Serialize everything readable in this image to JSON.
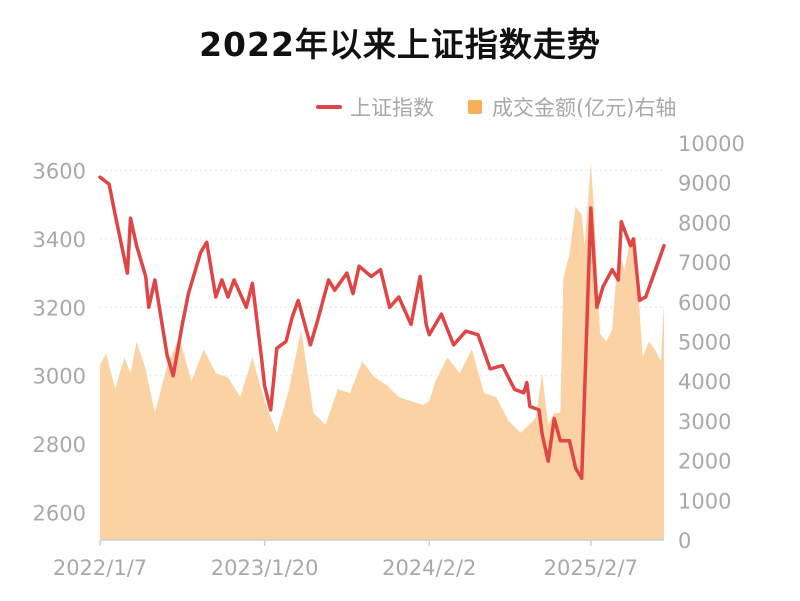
{
  "chart_data": {
    "type": "line+area",
    "title": "2022年以来上证指数走势",
    "colors": {
      "line": "#e04545",
      "area": "#fbd2a3",
      "legend_area": "#f7ae57"
    },
    "legend": [
      {
        "name": "上证指数",
        "kind": "line"
      },
      {
        "name": "成交金额(亿元)右轴",
        "kind": "area"
      }
    ],
    "legend_position": "top-right",
    "grid": true,
    "x_ticks": [
      "2022/1/7",
      "2023/1/20",
      "2024/2/2",
      "2025/2/7"
    ],
    "x_range": [
      "2022/1/7",
      "2025/7/25"
    ],
    "y_left": {
      "ylim": [
        2520,
        3680
      ],
      "ticks": [
        2600,
        2800,
        3000,
        3200,
        3400,
        3600
      ]
    },
    "y_right": {
      "ylim": [
        0,
        10000
      ],
      "ticks": [
        0,
        1000,
        2000,
        3000,
        4000,
        5000,
        6000,
        7000,
        8000,
        9000,
        10000
      ]
    },
    "series": [
      {
        "name": "上证指数",
        "axis": "left",
        "points": [
          [
            "2022/1/7",
            3580
          ],
          [
            "2022/1/28",
            3560
          ],
          [
            "2022/2/11",
            3470
          ],
          [
            "2022/3/11",
            3300
          ],
          [
            "2022/3/18",
            3460
          ],
          [
            "2022/4/1",
            3380
          ],
          [
            "2022/4/22",
            3290
          ],
          [
            "2022/4/29",
            3200
          ],
          [
            "2022/5/13",
            3280
          ],
          [
            "2022/6/10",
            3060
          ],
          [
            "2022/6/24",
            3000
          ],
          [
            "2022/7/15",
            3150
          ],
          [
            "2022/7/29",
            3240
          ],
          [
            "2022/8/26",
            3360
          ],
          [
            "2022/9/9",
            3390
          ],
          [
            "2022/9/30",
            3230
          ],
          [
            "2022/10/14",
            3280
          ],
          [
            "2022/10/28",
            3230
          ],
          [
            "2022/11/11",
            3280
          ],
          [
            "2022/12/9",
            3200
          ],
          [
            "2022/12/23",
            3270
          ],
          [
            "2023/1/13",
            3050
          ],
          [
            "2023/1/20",
            2970
          ],
          [
            "2023/2/3",
            2900
          ],
          [
            "2023/2/17",
            3080
          ],
          [
            "2023/3/10",
            3100
          ],
          [
            "2023/3/24",
            3170
          ],
          [
            "2023/4/7",
            3220
          ],
          [
            "2023/5/5",
            3090
          ],
          [
            "2023/5/19",
            3150
          ],
          [
            "2023/6/16",
            3280
          ],
          [
            "2023/6/30",
            3250
          ],
          [
            "2023/7/28",
            3300
          ],
          [
            "2023/8/11",
            3240
          ],
          [
            "2023/8/25",
            3320
          ],
          [
            "2023/9/22",
            3290
          ],
          [
            "2023/10/13",
            3310
          ],
          [
            "2023/11/3",
            3200
          ],
          [
            "2023/11/24",
            3230
          ],
          [
            "2023/12/22",
            3150
          ],
          [
            "2024/1/12",
            3290
          ],
          [
            "2024/1/26",
            3150
          ],
          [
            "2024/2/2",
            3120
          ],
          [
            "2024/3/1",
            3180
          ],
          [
            "2024/3/29",
            3090
          ],
          [
            "2024/4/26",
            3130
          ],
          [
            "2024/5/24",
            3120
          ],
          [
            "2024/6/21",
            3020
          ],
          [
            "2024/7/19",
            3030
          ],
          [
            "2024/8/16",
            2960
          ],
          [
            "2024/9/6",
            2950
          ],
          [
            "2024/9/13",
            2980
          ],
          [
            "2024/9/20",
            2910
          ],
          [
            "2024/10/11",
            2900
          ],
          [
            "2024/10/18",
            2830
          ],
          [
            "2024/11/1",
            2750
          ],
          [
            "2024/11/15",
            2875
          ],
          [
            "2024/11/29",
            2810
          ],
          [
            "2024/12/20",
            2810
          ],
          [
            "2025/1/3",
            2730
          ],
          [
            "2025/1/17",
            2700
          ],
          [
            "2025/2/7",
            3490
          ],
          [
            "2025/2/21",
            3200
          ],
          [
            "2025/3/7",
            3260
          ],
          [
            "2025/3/28",
            3310
          ],
          [
            "2025/4/11",
            3280
          ],
          [
            "2025/4/18",
            3450
          ],
          [
            "2025/5/9",
            3380
          ],
          [
            "2025/5/16",
            3400
          ],
          [
            "2025/5/30",
            3220
          ],
          [
            "2025/6/13",
            3230
          ],
          [
            "2025/6/27",
            3280
          ],
          [
            "2025/7/25",
            3380
          ]
        ]
      },
      {
        "name": "成交金额(亿元)右轴",
        "axis": "right",
        "points": [
          [
            "2022/1/7",
            4400
          ],
          [
            "2022/1/21",
            4700
          ],
          [
            "2022/2/11",
            3800
          ],
          [
            "2022/3/4",
            4600
          ],
          [
            "2022/3/18",
            4200
          ],
          [
            "2022/4/1",
            5000
          ],
          [
            "2022/4/22",
            4300
          ],
          [
            "2022/5/13",
            3200
          ],
          [
            "2022/6/10",
            4400
          ],
          [
            "2022/7/8",
            5100
          ],
          [
            "2022/8/5",
            4000
          ],
          [
            "2022/9/2",
            4800
          ],
          [
            "2022/9/30",
            4200
          ],
          [
            "2022/10/28",
            4100
          ],
          [
            "2022/11/25",
            3600
          ],
          [
            "2022/12/23",
            4600
          ],
          [
            "2023/1/20",
            3500
          ],
          [
            "2023/2/17",
            2700
          ],
          [
            "2023/3/17",
            3800
          ],
          [
            "2023/4/14",
            5300
          ],
          [
            "2023/5/12",
            3200
          ],
          [
            "2023/6/9",
            2900
          ],
          [
            "2023/7/7",
            3800
          ],
          [
            "2023/8/4",
            3700
          ],
          [
            "2023/9/1",
            4500
          ],
          [
            "2023/9/29",
            4100
          ],
          [
            "2023/10/27",
            3900
          ],
          [
            "2023/11/24",
            3600
          ],
          [
            "2023/12/22",
            3500
          ],
          [
            "2024/1/19",
            3400
          ],
          [
            "2024/2/2",
            3500
          ],
          [
            "2024/2/16",
            4000
          ],
          [
            "2024/3/15",
            4600
          ],
          [
            "2024/4/12",
            4200
          ],
          [
            "2024/5/10",
            4800
          ],
          [
            "2024/6/7",
            3700
          ],
          [
            "2024/7/5",
            3600
          ],
          [
            "2024/8/2",
            3000
          ],
          [
            "2024/8/30",
            2700
          ],
          [
            "2024/9/27",
            3000
          ],
          [
            "2024/10/4",
            3100
          ],
          [
            "2024/10/18",
            4200
          ],
          [
            "2024/11/1",
            2900
          ],
          [
            "2024/11/15",
            3200
          ],
          [
            "2024/11/29",
            3200
          ],
          [
            "2024/12/6",
            6600
          ],
          [
            "2024/12/20",
            7200
          ],
          [
            "2025/1/3",
            8400
          ],
          [
            "2025/1/17",
            8200
          ],
          [
            "2025/1/24",
            7400
          ],
          [
            "2025/2/7",
            9500
          ],
          [
            "2025/2/14",
            8400
          ],
          [
            "2025/2/28",
            5200
          ],
          [
            "2025/3/14",
            5000
          ],
          [
            "2025/3/28",
            5300
          ],
          [
            "2025/4/11",
            7300
          ],
          [
            "2025/4/25",
            6800
          ],
          [
            "2025/5/9",
            7600
          ],
          [
            "2025/5/23",
            6900
          ],
          [
            "2025/6/6",
            4600
          ],
          [
            "2025/6/20",
            5000
          ],
          [
            "2025/7/4",
            4800
          ],
          [
            "2025/7/18",
            4500
          ],
          [
            "2025/7/25",
            6000
          ]
        ]
      }
    ]
  }
}
